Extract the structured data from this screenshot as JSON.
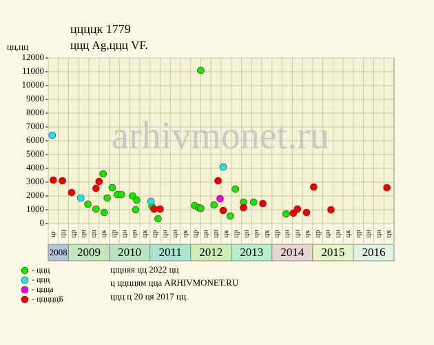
{
  "chart_data": {
    "type": "scatter",
    "title": "ццццк 1779",
    "subtitle": "ццц Ag,ццц VF.",
    "y_label": "цц,цц",
    "watermark": "arhivmonet.ru",
    "xlim": [
      0,
      34
    ],
    "ylim": [
      0,
      12000
    ],
    "yticks": [
      0,
      1000,
      2000,
      3000,
      4000,
      5000,
      6000,
      7000,
      8000,
      9000,
      10000,
      11000,
      12000
    ],
    "grid": true,
    "quarter_labels": [
      "цг",
      "цц",
      "цр",
      "цн",
      "цн",
      "цк",
      "цр",
      "цн",
      "цн",
      "цк",
      "цр",
      "цн",
      "цн",
      "цк",
      "цр",
      "цн",
      "цн",
      "цк",
      "цр",
      "цн",
      "цн",
      "цк",
      "цр",
      "цн",
      "цн",
      "цк",
      "цр",
      "цн",
      "цн",
      "цк",
      "цр",
      "цн",
      "цн",
      "цк"
    ],
    "years": [
      {
        "label": "2008",
        "start": 0,
        "end": 2,
        "color": "#b4c4d8"
      },
      {
        "label": "2009",
        "start": 2,
        "end": 6,
        "color": "#c4e8bc"
      },
      {
        "label": "2010",
        "start": 6,
        "end": 10,
        "color": "#b8e4c4"
      },
      {
        "label": "2011",
        "start": 10,
        "end": 14,
        "color": "#a8e4d0"
      },
      {
        "label": "2012",
        "start": 14,
        "end": 18,
        "color": "#ccf0b4"
      },
      {
        "label": "2013",
        "start": 18,
        "end": 22,
        "color": "#b4f0cc"
      },
      {
        "label": "2014",
        "start": 22,
        "end": 26,
        "color": "#e8d4d0"
      },
      {
        "label": "2015",
        "start": 26,
        "end": 30,
        "color": "#e4f4c4"
      },
      {
        "label": "2016",
        "start": 30,
        "end": 34,
        "color": "#e0f4e4"
      }
    ],
    "series": [
      {
        "name": "- ццц",
        "color": "#00ee00",
        "x": [
          5.4,
          6.3,
          5.8,
          5.5,
          4.7,
          3.9,
          6.8,
          7.2,
          8.3,
          8.7,
          8.6,
          10.2,
          10.8,
          14.4,
          14.8,
          15.0,
          15.0,
          16.3,
          17.9,
          18.4,
          19.2,
          20.2,
          23.4
        ],
        "values": [
          3600,
          2600,
          1850,
          800,
          1050,
          1400,
          2100,
          2100,
          2000,
          1700,
          1000,
          1250,
          350,
          1300,
          1150,
          1100,
          11100,
          1350,
          550,
          2500,
          1550,
          1550,
          700
        ]
      },
      {
        "name": "- ццц",
        "color": "#00eeff",
        "x": [
          0.4,
          3.2,
          10.1,
          17.2
        ],
        "values": [
          6400,
          1850,
          1600,
          4100
        ]
      },
      {
        "name": "- ццца",
        "color": "#ee00ee",
        "x": [
          16.9
        ],
        "values": [
          1800
        ]
      },
      {
        "name": "- цццццБ",
        "color": "#ee0000",
        "x": [
          0.5,
          1.4,
          2.3,
          4.7,
          5.0,
          10.4,
          11.0,
          16.7,
          17.2,
          19.2,
          21.1,
          24.1,
          24.5,
          25.4,
          26.1,
          27.8,
          33.3
        ],
        "values": [
          3150,
          3100,
          2250,
          2550,
          3050,
          1050,
          1050,
          3100,
          950,
          1150,
          1450,
          750,
          1050,
          800,
          2650,
          1000,
          2600
        ]
      }
    ],
    "notes": [
      "цщняя цц 2022 цц",
      "ц ццццям цца ARHIVMONET.RU",
      "ццц ц 20 ця 2017 цц."
    ]
  }
}
